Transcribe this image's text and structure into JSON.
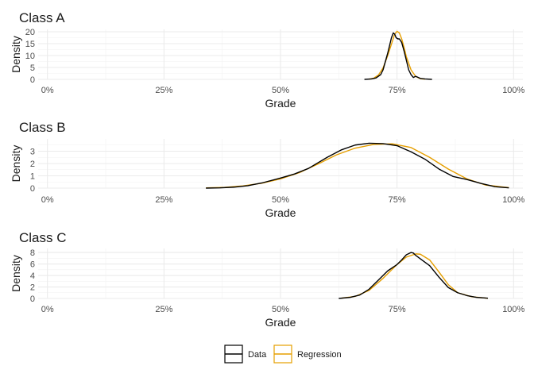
{
  "chart_data": [
    {
      "type": "line",
      "title": "Class A",
      "xlabel": "Grade",
      "ylabel": "Density",
      "xlim": [
        -0.02,
        1.02
      ],
      "ylim": [
        0,
        21
      ],
      "x_ticks": [
        0,
        0.25,
        0.5,
        0.75,
        1.0
      ],
      "x_tick_labels": [
        "0%",
        "25%",
        "50%",
        "75%",
        "100%"
      ],
      "y_ticks": [
        0,
        5,
        10,
        15,
        20
      ],
      "y_tick_labels": [
        "0",
        "5",
        "10",
        "15",
        "20"
      ],
      "grid": true,
      "series": [
        {
          "name": "Data",
          "color": "#000000",
          "x": [
            0.68,
            0.695,
            0.705,
            0.715,
            0.72,
            0.725,
            0.73,
            0.735,
            0.738,
            0.742,
            0.745,
            0.748,
            0.752,
            0.755,
            0.76,
            0.765,
            0.77,
            0.775,
            0.78,
            0.785,
            0.79,
            0.8,
            0.81,
            0.825
          ],
          "y": [
            0,
            0.2,
            0.6,
            2,
            4,
            7.5,
            11,
            15,
            17.5,
            19.5,
            19,
            17.5,
            17,
            17,
            15.5,
            12,
            8,
            4,
            2,
            0.8,
            1.3,
            0.4,
            0.2,
            0
          ]
        },
        {
          "name": "Regression",
          "color": "#E69F00",
          "x": [
            0.69,
            0.7,
            0.71,
            0.72,
            0.73,
            0.74,
            0.745,
            0.75,
            0.755,
            0.76,
            0.765,
            0.77,
            0.78,
            0.79,
            0.8,
            0.81
          ],
          "y": [
            0.1,
            0.5,
            1.8,
            4.8,
            10,
            16,
            19,
            20.2,
            19.5,
            17,
            13.5,
            9.5,
            4,
            1.2,
            0.3,
            0.05
          ]
        }
      ]
    },
    {
      "type": "line",
      "title": "Class B",
      "xlabel": "Grade",
      "ylabel": "Density",
      "xlim": [
        -0.02,
        1.02
      ],
      "ylim": [
        0,
        4
      ],
      "x_ticks": [
        0,
        0.25,
        0.5,
        0.75,
        1.0
      ],
      "x_tick_labels": [
        "0%",
        "25%",
        "50%",
        "75%",
        "100%"
      ],
      "y_ticks": [
        0,
        1,
        2,
        3
      ],
      "y_tick_labels": [
        "0",
        "1",
        "2",
        "3"
      ],
      "grid": true,
      "series": [
        {
          "name": "Data",
          "color": "#000000",
          "x": [
            0.34,
            0.37,
            0.4,
            0.43,
            0.46,
            0.5,
            0.53,
            0.56,
            0.6,
            0.63,
            0.66,
            0.69,
            0.72,
            0.75,
            0.78,
            0.81,
            0.84,
            0.87,
            0.9,
            0.93,
            0.96,
            0.99
          ],
          "y": [
            0.0,
            0.02,
            0.08,
            0.2,
            0.42,
            0.82,
            1.15,
            1.6,
            2.5,
            3.1,
            3.5,
            3.65,
            3.62,
            3.45,
            2.95,
            2.35,
            1.55,
            0.95,
            0.7,
            0.38,
            0.12,
            0.02
          ]
        },
        {
          "name": "Regression",
          "color": "#E69F00",
          "x": [
            0.34,
            0.38,
            0.42,
            0.46,
            0.5,
            0.54,
            0.58,
            0.62,
            0.66,
            0.7,
            0.74,
            0.78,
            0.82,
            0.86,
            0.9,
            0.94,
            0.99
          ],
          "y": [
            0.02,
            0.06,
            0.18,
            0.4,
            0.75,
            1.25,
            1.95,
            2.7,
            3.25,
            3.55,
            3.6,
            3.3,
            2.5,
            1.55,
            0.75,
            0.25,
            0.04
          ]
        }
      ]
    },
    {
      "type": "line",
      "title": "Class C",
      "xlabel": "Grade",
      "ylabel": "Density",
      "xlim": [
        -0.02,
        1.02
      ],
      "ylim": [
        0,
        8.7
      ],
      "x_ticks": [
        0,
        0.25,
        0.5,
        0.75,
        1.0
      ],
      "x_tick_labels": [
        "0%",
        "25%",
        "50%",
        "75%",
        "100%"
      ],
      "y_ticks": [
        0,
        2,
        4,
        6,
        8
      ],
      "y_tick_labels": [
        "0",
        "2",
        "4",
        "6",
        "8"
      ],
      "grid": true,
      "series": [
        {
          "name": "Data",
          "color": "#000000",
          "x": [
            0.625,
            0.65,
            0.67,
            0.69,
            0.71,
            0.73,
            0.75,
            0.76,
            0.77,
            0.78,
            0.785,
            0.79,
            0.8,
            0.82,
            0.84,
            0.86,
            0.88,
            0.9,
            0.92,
            0.945
          ],
          "y": [
            0.0,
            0.2,
            0.6,
            1.6,
            3.2,
            4.8,
            5.9,
            6.7,
            7.6,
            8.0,
            7.9,
            7.5,
            6.9,
            5.7,
            3.7,
            1.9,
            1.0,
            0.5,
            0.2,
            0.05
          ]
        },
        {
          "name": "Regression",
          "color": "#E69F00",
          "x": [
            0.63,
            0.66,
            0.69,
            0.72,
            0.75,
            0.77,
            0.79,
            0.8,
            0.82,
            0.84,
            0.86,
            0.88,
            0.91,
            0.945
          ],
          "y": [
            0.05,
            0.35,
            1.4,
            3.5,
            5.9,
            7.2,
            7.75,
            7.7,
            6.7,
            4.6,
            2.4,
            1.0,
            0.3,
            0.02
          ]
        }
      ]
    }
  ],
  "legend": {
    "items": [
      {
        "label": "Data",
        "color": "#000000"
      },
      {
        "label": "Regression",
        "color": "#E69F00"
      }
    ],
    "placement": "bottom"
  }
}
